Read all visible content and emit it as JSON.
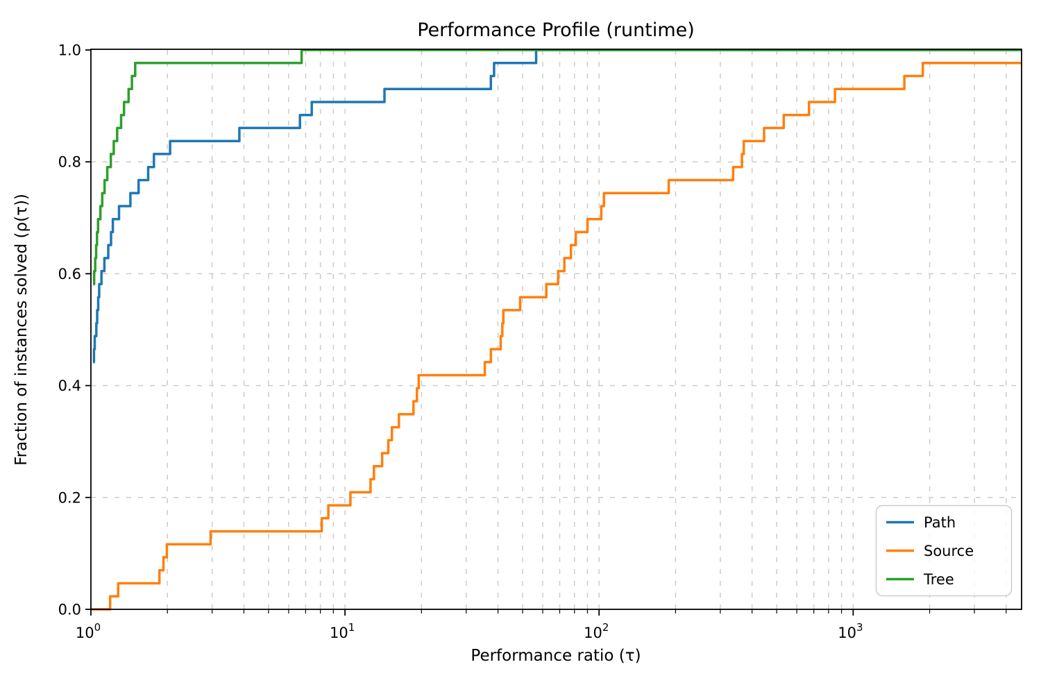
{
  "figure": {
    "title": "Performance Profile (runtime)",
    "xlabel": "Performance ratio (τ)",
    "ylabel": "Fraction of instances solved (ρ(τ))",
    "background_color": "#ffffff",
    "spine_color": "#000000",
    "grid_color": "#cbcbcb",
    "tick_color": "#000000"
  },
  "chart_data": {
    "type": "line",
    "subtype": "step-post-performance-profile",
    "title": "Performance Profile (runtime)",
    "xlabel": "Performance ratio (τ)",
    "ylabel": "Fraction of instances solved (ρ(τ))",
    "x_scale": "log10",
    "xlim": [
      1,
      4600
    ],
    "ylim": [
      0.0,
      1.0
    ],
    "grid": true,
    "grid_style": "dashed",
    "y_ticks": [
      "0.0",
      "0.2",
      "0.4",
      "0.6",
      "0.8",
      "1.0"
    ],
    "x_major_ticks": [
      {
        "value": 1,
        "base": "10",
        "exp": "0"
      },
      {
        "value": 10,
        "base": "10",
        "exp": "1"
      },
      {
        "value": 100,
        "base": "10",
        "exp": "2"
      },
      {
        "value": 1000,
        "base": "10",
        "exp": "3"
      }
    ],
    "legend": {
      "position": "lower right",
      "items": [
        {
          "label": "Path",
          "color": "#1f77b4"
        },
        {
          "label": "Source",
          "color": "#ff7f0e"
        },
        {
          "label": "Tree",
          "color": "#2ca02c"
        }
      ]
    },
    "series": [
      {
        "name": "Path",
        "color": "#1f77b4",
        "steps": [
          [
            1.02,
            0.4419
          ],
          [
            1.028,
            0.4651
          ],
          [
            1.035,
            0.4884
          ],
          [
            1.05,
            0.5116
          ],
          [
            1.058,
            0.5349
          ],
          [
            1.068,
            0.5581
          ],
          [
            1.078,
            0.5814
          ],
          [
            1.1,
            0.6047
          ],
          [
            1.13,
            0.6279
          ],
          [
            1.17,
            0.6512
          ],
          [
            1.2,
            0.6744
          ],
          [
            1.22,
            0.6977
          ],
          [
            1.29,
            0.7209
          ],
          [
            1.43,
            0.7442
          ],
          [
            1.54,
            0.7674
          ],
          [
            1.68,
            0.7907
          ],
          [
            1.77,
            0.814
          ],
          [
            2.05,
            0.8372
          ],
          [
            3.84,
            0.8605
          ],
          [
            6.65,
            0.8837
          ],
          [
            7.4,
            0.907
          ],
          [
            14.3,
            0.9302
          ],
          [
            37.5,
            0.9535
          ],
          [
            38.6,
            0.9767
          ],
          [
            56.5,
            1.0
          ]
        ]
      },
      {
        "name": "Source",
        "color": "#ff7f0e",
        "steps": [
          [
            1.0,
            0.0
          ],
          [
            1.19,
            0.0233
          ],
          [
            1.28,
            0.0465
          ],
          [
            1.86,
            0.0698
          ],
          [
            1.93,
            0.093
          ],
          [
            1.99,
            0.1163
          ],
          [
            2.96,
            0.1395
          ],
          [
            8.1,
            0.1628
          ],
          [
            8.6,
            0.186
          ],
          [
            10.5,
            0.2093
          ],
          [
            12.6,
            0.2326
          ],
          [
            13.0,
            0.2558
          ],
          [
            14.0,
            0.2791
          ],
          [
            14.8,
            0.3023
          ],
          [
            15.3,
            0.3256
          ],
          [
            16.3,
            0.3488
          ],
          [
            18.6,
            0.3721
          ],
          [
            19.2,
            0.3953
          ],
          [
            19.5,
            0.4186
          ],
          [
            35.5,
            0.4419
          ],
          [
            37.5,
            0.4651
          ],
          [
            41.0,
            0.4884
          ],
          [
            41.6,
            0.5116
          ],
          [
            42.0,
            0.5349
          ],
          [
            48.9,
            0.5581
          ],
          [
            62.0,
            0.5814
          ],
          [
            69.0,
            0.6047
          ],
          [
            73.0,
            0.6279
          ],
          [
            77.5,
            0.6512
          ],
          [
            81.0,
            0.6744
          ],
          [
            90.0,
            0.6977
          ],
          [
            102.0,
            0.7209
          ],
          [
            104.5,
            0.7442
          ],
          [
            188.0,
            0.7674
          ],
          [
            337.0,
            0.7907
          ],
          [
            365.0,
            0.814
          ],
          [
            371.0,
            0.8372
          ],
          [
            446.0,
            0.8605
          ],
          [
            533.0,
            0.8837
          ],
          [
            670.0,
            0.907
          ],
          [
            848.0,
            0.9302
          ],
          [
            1590.0,
            0.9535
          ],
          [
            1880.0,
            0.9767
          ]
        ]
      },
      {
        "name": "Tree",
        "color": "#2ca02c",
        "steps": [
          [
            1.02,
            0.5814
          ],
          [
            1.03,
            0.6047
          ],
          [
            1.04,
            0.6279
          ],
          [
            1.048,
            0.6512
          ],
          [
            1.057,
            0.6744
          ],
          [
            1.067,
            0.6977
          ],
          [
            1.09,
            0.7209
          ],
          [
            1.108,
            0.7442
          ],
          [
            1.132,
            0.7674
          ],
          [
            1.16,
            0.7907
          ],
          [
            1.198,
            0.814
          ],
          [
            1.23,
            0.8372
          ],
          [
            1.268,
            0.8605
          ],
          [
            1.315,
            0.8837
          ],
          [
            1.35,
            0.907
          ],
          [
            1.407,
            0.9302
          ],
          [
            1.45,
            0.9535
          ],
          [
            1.494,
            0.9767
          ],
          [
            6.75,
            1.0
          ]
        ]
      }
    ]
  }
}
